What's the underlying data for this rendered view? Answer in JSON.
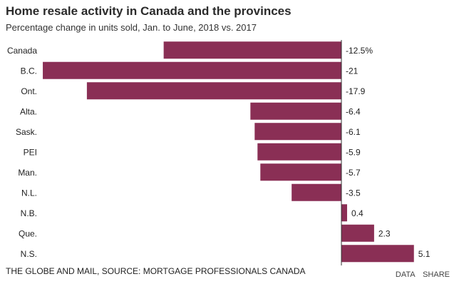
{
  "title": "Home resale activity in Canada and the provinces",
  "subtitle": "Percentage change in units sold, Jan. to June, 2018 vs. 2017",
  "source": "THE GLOBE AND MAIL, SOURCE: MORTGAGE PROFESSIONALS CANADA",
  "footer": {
    "data_label": "DATA",
    "share_label": "SHARE"
  },
  "colors": {
    "bar": "#8a2f55",
    "axis": "#333333"
  },
  "chart_data": {
    "type": "bar",
    "orientation": "horizontal",
    "title": "Home resale activity in Canada and the provinces",
    "subtitle": "Percentage change in units sold, Jan. to June, 2018 vs. 2017",
    "xlabel": "",
    "ylabel": "",
    "xlim": [
      -21,
      5.1
    ],
    "grid": false,
    "categories": [
      "Canada",
      "B.C.",
      "Ont.",
      "Alta.",
      "Sask.",
      "PEI",
      "Man.",
      "N.L.",
      "N.B.",
      "Que.",
      "N.S."
    ],
    "values": [
      -12.5,
      -21,
      -17.9,
      -6.4,
      -6.1,
      -5.9,
      -5.7,
      -3.5,
      0.4,
      2.3,
      5.1
    ],
    "value_labels": [
      "-12.5%",
      "-21",
      "-17.9",
      "-6.4",
      "-6.1",
      "-5.9",
      "-5.7",
      "-3.5",
      "0.4",
      "2.3",
      "5.1"
    ]
  }
}
